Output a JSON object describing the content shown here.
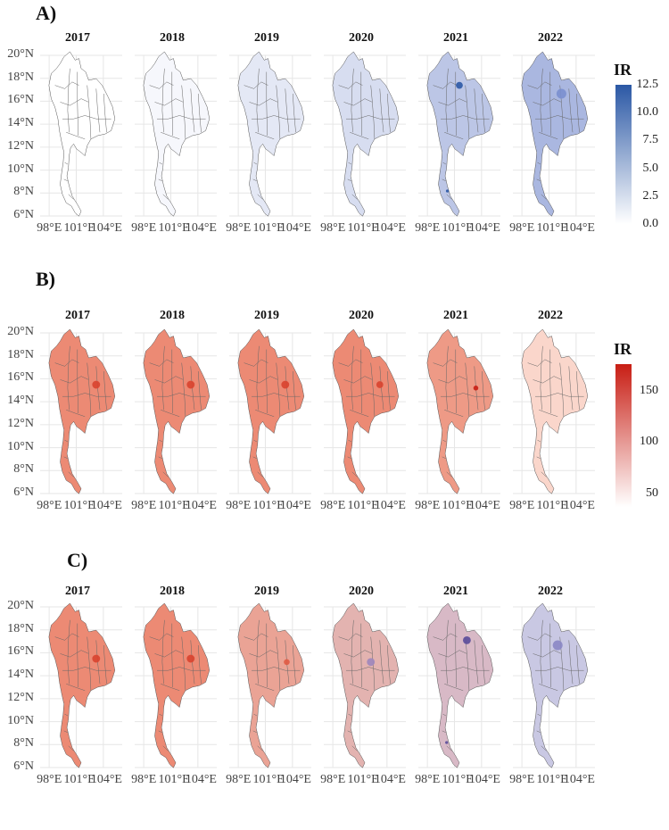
{
  "panels": [
    {
      "label": "A)",
      "years": [
        "2017",
        "2018",
        "2019",
        "2020",
        "2021",
        "2022"
      ],
      "y_ticks": [
        "20°N",
        "18°N",
        "16°N",
        "14°N",
        "12°N",
        "10°N",
        "8°N",
        "6°N"
      ],
      "x_ticks": [
        "98°E",
        "101°E",
        "104°E"
      ],
      "legend": {
        "title": "IR",
        "ticks": [
          "12.5",
          "10.0",
          "7.5",
          "5.0",
          "2.5",
          "0.0"
        ],
        "colors": [
          "#ffffff",
          "#2b58a5"
        ]
      },
      "fills": [
        "#ffffff",
        "#f6f7fc",
        "#e4e8f5",
        "#d7ddf0",
        "#bcc6e6",
        "#aab7e0"
      ]
    },
    {
      "label": "B)",
      "years": [
        "2017",
        "2018",
        "2019",
        "2020",
        "2021",
        "2022"
      ],
      "y_ticks": [
        "20°N",
        "18°N",
        "16°N",
        "14°N",
        "12°N",
        "10°N",
        "8°N",
        "6°N"
      ],
      "x_ticks": [
        "98°E",
        "101°E",
        "104°E"
      ],
      "legend": {
        "title": "IR",
        "ticks": [
          "150",
          "100",
          "50"
        ],
        "colors": [
          "#ffffff",
          "#c81e14"
        ]
      },
      "fills": [
        "#ec8a74",
        "#ec8a74",
        "#ec8a74",
        "#ec8a74",
        "#ee9a86",
        "#fad6cb"
      ]
    },
    {
      "label": "C)",
      "years": [
        "2017",
        "2018",
        "2019",
        "2020",
        "2021",
        "2022"
      ],
      "y_ticks": [
        "20°N",
        "18°N",
        "16°N",
        "14°N",
        "12°N",
        "10°N",
        "8°N",
        "6°N"
      ],
      "x_ticks": [
        "98°E",
        "101°E",
        "104°E"
      ],
      "fills": [
        "#ec8a74",
        "#ec8a74",
        "#eaa395",
        "#e3b3b0",
        "#d8b9c6",
        "#c9c8e3"
      ]
    }
  ]
}
